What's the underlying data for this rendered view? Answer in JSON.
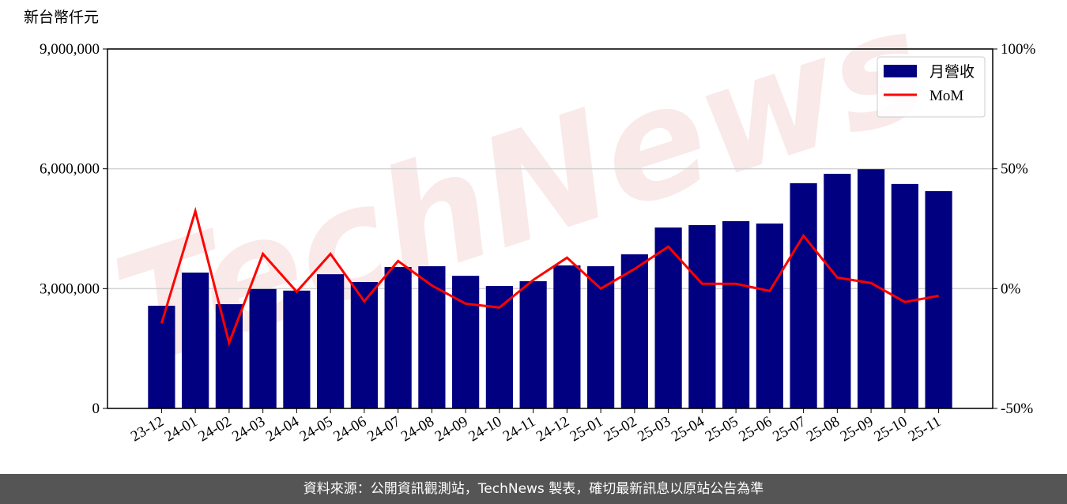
{
  "chart_data": {
    "type": "bar",
    "y_label": "新台幣仟元",
    "watermark": "TechNews",
    "categories": [
      "23-12",
      "24-01",
      "24-02",
      "24-03",
      "24-04",
      "24-05",
      "24-06",
      "24-07",
      "24-08",
      "24-09",
      "24-10",
      "24-11",
      "24-12",
      "25-01",
      "25-02",
      "25-03",
      "25-04",
      "25-05",
      "25-06",
      "25-07",
      "25-08",
      "25-09",
      "25-10",
      "25-11"
    ],
    "series": [
      {
        "name": "月營收",
        "type": "bar",
        "color": "#000080",
        "values": [
          2570000,
          3400000,
          2610000,
          2990000,
          2950000,
          3360000,
          3165000,
          3540000,
          3560000,
          3320000,
          3065000,
          3185000,
          3580000,
          3560000,
          3860000,
          4530000,
          4590000,
          4690000,
          4630000,
          5640000,
          5875000,
          5990000,
          5620000,
          5440000
        ]
      },
      {
        "name": "MoM",
        "type": "line",
        "axis": "y2",
        "color": "#ff0000",
        "values": [
          -14.5,
          32.3,
          -22.7,
          14.5,
          -1.3,
          14.5,
          -5.3,
          11.5,
          1.3,
          -6.3,
          -7.9,
          3.6,
          12.9,
          0,
          8.2,
          17.5,
          2.0,
          2.0,
          -1.0,
          22.1,
          4.6,
          2.3,
          -5.6,
          -3.0
        ]
      }
    ],
    "ylim": [
      0,
      9000000
    ],
    "yticks": [
      0,
      {
        "value": 3000000,
        "label": "3,000,000"
      },
      {
        "value": 6000000,
        "label": "6,000,000"
      },
      {
        "value": 9000000,
        "label": "9,000,000"
      }
    ],
    "y2lim": [
      -50,
      100
    ],
    "y2ticks": [
      {
        "value": -50,
        "label": "-50%"
      },
      {
        "value": 0,
        "label": "0%"
      },
      {
        "value": 50,
        "label": "50%"
      },
      {
        "value": 100,
        "label": "100%"
      }
    ],
    "grid": true,
    "legend": "upper right"
  },
  "footer": "資料來源：公開資訊觀測站，TechNews 製表，確切最新訊息以原站公告為準"
}
